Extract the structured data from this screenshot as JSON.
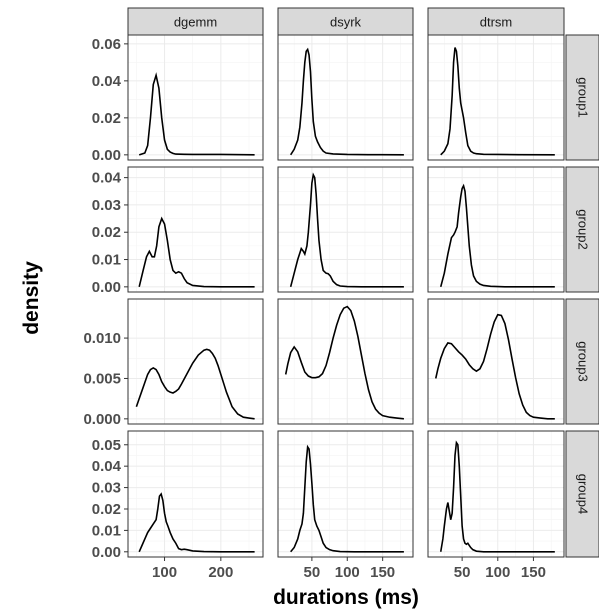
{
  "chart_data": {
    "type": "line",
    "xlabel": "durations (ms)",
    "ylabel": "density",
    "columns": [
      "dgemm",
      "dsyrk",
      "dtrsm"
    ],
    "rows": [
      "group1",
      "group2",
      "group3",
      "group4"
    ],
    "x_axes": {
      "dgemm": {
        "range": [
          45,
          265
        ],
        "ticks": [
          100,
          200
        ],
        "minor": [
          50,
          150,
          250
        ]
      },
      "dsyrk": {
        "range": [
          10,
          185
        ],
        "ticks": [
          50,
          100,
          150
        ],
        "minor": [
          25,
          75,
          125,
          175
        ]
      },
      "dtrsm": {
        "range": [
          10,
          185
        ],
        "ticks": [
          50,
          100,
          150
        ],
        "minor": [
          25,
          75,
          125,
          175
        ]
      }
    },
    "y_axes": {
      "group1": {
        "range": [
          0,
          0.062
        ],
        "ticks": [
          0.0,
          0.02,
          0.04,
          0.06
        ],
        "tick_labels": [
          "0.00",
          "0.02",
          "0.04",
          "0.06"
        ]
      },
      "group2": {
        "range": [
          0,
          0.042
        ],
        "ticks": [
          0.0,
          0.01,
          0.02,
          0.03,
          0.04
        ],
        "tick_labels": [
          "0.00",
          "0.01",
          "0.02",
          "0.03",
          "0.04"
        ]
      },
      "group3": {
        "range": [
          0,
          0.0142
        ],
        "ticks": [
          0.0,
          0.005,
          0.01
        ],
        "tick_labels": [
          "0.000",
          "0.005",
          "0.010"
        ]
      },
      "group4": {
        "range": [
          0,
          0.054
        ],
        "ticks": [
          0.0,
          0.01,
          0.02,
          0.03,
          0.04,
          0.05
        ],
        "tick_labels": [
          "0.00",
          "0.01",
          "0.02",
          "0.03",
          "0.04",
          "0.05"
        ]
      }
    },
    "panels": [
      {
        "row": "group1",
        "col": "dgemm",
        "x": [
          55,
          65,
          70,
          75,
          80,
          85,
          90,
          95,
          100,
          105,
          110,
          115,
          120,
          135,
          150,
          200,
          260
        ],
        "y": [
          0,
          0.001,
          0.005,
          0.02,
          0.038,
          0.043,
          0.036,
          0.02,
          0.008,
          0.003,
          0.0015,
          0.0008,
          0.0004,
          0.0003,
          0.0002,
          0.0002,
          0
        ]
      },
      {
        "row": "group1",
        "col": "dsyrk",
        "x": [
          20,
          25,
          30,
          33,
          36,
          38,
          40,
          42,
          44,
          46,
          48,
          50,
          52,
          55,
          58,
          62,
          66,
          70,
          80,
          100,
          130,
          180
        ],
        "y": [
          0,
          0.003,
          0.008,
          0.015,
          0.028,
          0.04,
          0.05,
          0.056,
          0.057,
          0.054,
          0.045,
          0.03,
          0.018,
          0.01,
          0.007,
          0.004,
          0.002,
          0.001,
          0.0005,
          0.0002,
          0.0001,
          0
        ]
      },
      {
        "row": "group1",
        "col": "dtrsm",
        "x": [
          20,
          25,
          30,
          33,
          36,
          38,
          40,
          42,
          44,
          46,
          48,
          50,
          52,
          55,
          58,
          62,
          66,
          70,
          80,
          100,
          130,
          180
        ],
        "y": [
          0,
          0.002,
          0.006,
          0.014,
          0.032,
          0.05,
          0.058,
          0.056,
          0.048,
          0.036,
          0.028,
          0.024,
          0.02,
          0.012,
          0.005,
          0.002,
          0.001,
          0.0006,
          0.0003,
          0.0002,
          0.0001,
          0
        ]
      },
      {
        "row": "group2",
        "col": "dgemm",
        "x": [
          55,
          62,
          68,
          73,
          78,
          82,
          86,
          90,
          95,
          100,
          105,
          110,
          115,
          120,
          125,
          130,
          135,
          140,
          150,
          170,
          200,
          260
        ],
        "y": [
          0,
          0.006,
          0.011,
          0.013,
          0.011,
          0.011,
          0.015,
          0.022,
          0.025,
          0.023,
          0.017,
          0.01,
          0.006,
          0.005,
          0.0055,
          0.005,
          0.003,
          0.0015,
          0.0005,
          0.0001,
          0,
          0
        ]
      },
      {
        "row": "group2",
        "col": "dsyrk",
        "x": [
          20,
          25,
          30,
          35,
          38,
          40,
          43,
          45,
          48,
          50,
          52,
          54,
          56,
          58,
          60,
          63,
          66,
          70,
          73,
          76,
          80,
          85,
          90,
          100,
          120,
          180
        ],
        "y": [
          0,
          0.005,
          0.01,
          0.014,
          0.013,
          0.012,
          0.015,
          0.02,
          0.03,
          0.038,
          0.041,
          0.04,
          0.034,
          0.025,
          0.017,
          0.01,
          0.006,
          0.005,
          0.0048,
          0.004,
          0.002,
          0.0008,
          0.0003,
          0.0001,
          0,
          0
        ]
      },
      {
        "row": "group2",
        "col": "dtrsm",
        "x": [
          20,
          25,
          30,
          35,
          38,
          40,
          43,
          45,
          48,
          50,
          52,
          54,
          56,
          58,
          60,
          63,
          66,
          70,
          75,
          80,
          90,
          110,
          180
        ],
        "y": [
          0,
          0.005,
          0.012,
          0.018,
          0.019,
          0.02,
          0.022,
          0.027,
          0.033,
          0.036,
          0.037,
          0.035,
          0.029,
          0.022,
          0.015,
          0.008,
          0.004,
          0.002,
          0.001,
          0.0005,
          0.0002,
          0,
          0
        ]
      },
      {
        "row": "group3",
        "col": "dgemm",
        "x": [
          50,
          55,
          60,
          65,
          70,
          75,
          80,
          85,
          90,
          95,
          100,
          105,
          110,
          115,
          120,
          125,
          130,
          140,
          150,
          160,
          170,
          175,
          180,
          185,
          190,
          195,
          200,
          205,
          210,
          215,
          220,
          230,
          240,
          250,
          260
        ],
        "y": [
          0.0015,
          0.0025,
          0.0035,
          0.0045,
          0.0055,
          0.0061,
          0.0063,
          0.0061,
          0.0055,
          0.0046,
          0.004,
          0.0035,
          0.0033,
          0.0032,
          0.0034,
          0.0037,
          0.0043,
          0.0056,
          0.0069,
          0.0079,
          0.0085,
          0.0086,
          0.0085,
          0.0081,
          0.0075,
          0.0066,
          0.0055,
          0.0044,
          0.0033,
          0.0024,
          0.0015,
          0.0006,
          0.0002,
          0.0001,
          0
        ]
      },
      {
        "row": "group3",
        "col": "dsyrk",
        "x": [
          13,
          16,
          20,
          25,
          30,
          35,
          40,
          45,
          50,
          55,
          60,
          65,
          70,
          75,
          80,
          85,
          90,
          95,
          100,
          105,
          110,
          115,
          120,
          125,
          130,
          135,
          140,
          145,
          150,
          160,
          170,
          180
        ],
        "y": [
          0.0055,
          0.0068,
          0.0082,
          0.0089,
          0.0083,
          0.007,
          0.0058,
          0.0053,
          0.0051,
          0.0051,
          0.0052,
          0.0056,
          0.0066,
          0.0082,
          0.01,
          0.0116,
          0.0129,
          0.0137,
          0.0139,
          0.0134,
          0.0121,
          0.0102,
          0.0079,
          0.0056,
          0.0036,
          0.0021,
          0.0012,
          0.0007,
          0.0004,
          0.0002,
          0.0001,
          0
        ]
      },
      {
        "row": "group3",
        "col": "dtrsm",
        "x": [
          13,
          16,
          20,
          25,
          30,
          35,
          40,
          45,
          50,
          55,
          60,
          65,
          70,
          75,
          80,
          85,
          90,
          95,
          100,
          105,
          110,
          115,
          120,
          125,
          130,
          135,
          140,
          145,
          150,
          160,
          170,
          180
        ],
        "y": [
          0.005,
          0.0062,
          0.0075,
          0.0087,
          0.0094,
          0.0093,
          0.0088,
          0.0083,
          0.0079,
          0.0074,
          0.0067,
          0.0062,
          0.0059,
          0.0062,
          0.0071,
          0.0087,
          0.0105,
          0.012,
          0.0129,
          0.0128,
          0.0118,
          0.0098,
          0.0074,
          0.0051,
          0.0031,
          0.0017,
          0.0008,
          0.0004,
          0.0002,
          0.0001,
          0,
          0
        ]
      },
      {
        "row": "group4",
        "col": "dgemm",
        "x": [
          55,
          60,
          65,
          70,
          75,
          80,
          85,
          88,
          91,
          94,
          97,
          100,
          103,
          106,
          110,
          115,
          120,
          125,
          130,
          135,
          140,
          150,
          170,
          200,
          260
        ],
        "y": [
          0,
          0.003,
          0.006,
          0.009,
          0.011,
          0.013,
          0.015,
          0.02,
          0.026,
          0.027,
          0.024,
          0.018,
          0.014,
          0.012,
          0.009,
          0.006,
          0.004,
          0.0015,
          0.001,
          0.0012,
          0.001,
          0.0004,
          0.0001,
          0,
          0
        ]
      },
      {
        "row": "group4",
        "col": "dsyrk",
        "x": [
          20,
          25,
          30,
          33,
          36,
          38,
          40,
          42,
          44,
          46,
          48,
          50,
          52,
          54,
          57,
          60,
          63,
          66,
          70,
          75,
          80,
          90,
          110,
          180
        ],
        "y": [
          0,
          0.002,
          0.006,
          0.01,
          0.013,
          0.018,
          0.03,
          0.042,
          0.049,
          0.048,
          0.041,
          0.032,
          0.022,
          0.015,
          0.012,
          0.01,
          0.007,
          0.004,
          0.002,
          0.001,
          0.0005,
          0.0001,
          0,
          0
        ]
      },
      {
        "row": "group4",
        "col": "dtrsm",
        "x": [
          20,
          23,
          25,
          28,
          30,
          32,
          34,
          36,
          38,
          40,
          42,
          44,
          46,
          48,
          50,
          52,
          54,
          56,
          58,
          60,
          62,
          65,
          70,
          80,
          100,
          180
        ],
        "y": [
          0,
          0.006,
          0.012,
          0.02,
          0.023,
          0.019,
          0.015,
          0.018,
          0.03,
          0.045,
          0.051,
          0.05,
          0.04,
          0.026,
          0.012,
          0.006,
          0.004,
          0.0035,
          0.004,
          0.003,
          0.002,
          0.001,
          0.0003,
          0,
          0,
          0
        ]
      }
    ]
  }
}
